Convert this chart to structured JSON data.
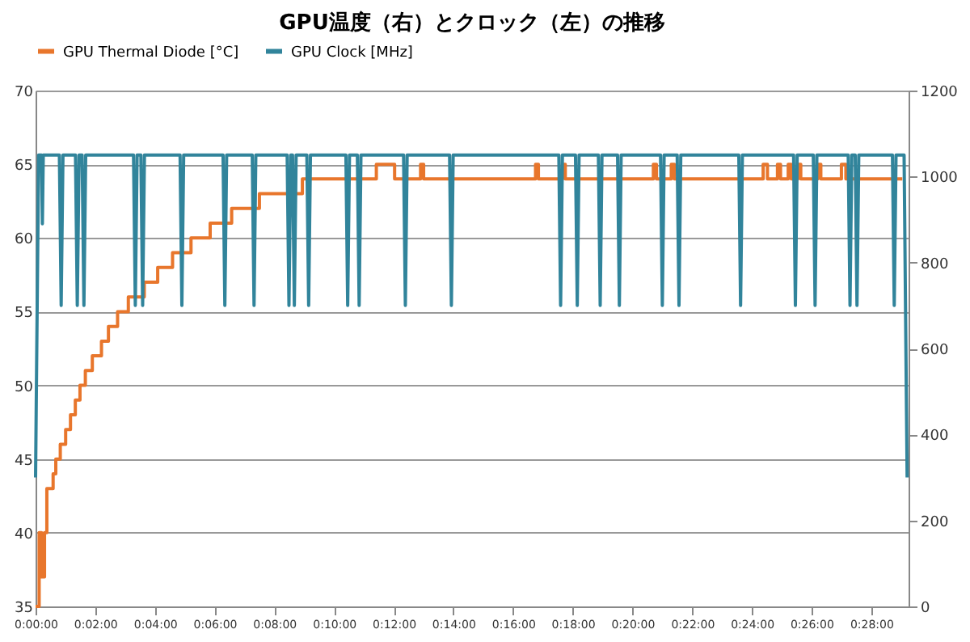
{
  "chart_data": {
    "type": "line",
    "title": "GPU温度（右）とクロック（左）の推移",
    "xlim": [
      0,
      0.4875
    ],
    "xticks": [
      {
        "value": 0,
        "label": "0:00:00"
      },
      {
        "value": 0.0333,
        "label": "0:02:00"
      },
      {
        "value": 0.0667,
        "label": "0:04:00"
      },
      {
        "value": 0.1,
        "label": "0:06:00"
      },
      {
        "value": 0.1333,
        "label": "0:08:00"
      },
      {
        "value": 0.1667,
        "label": "0:10:00"
      },
      {
        "value": 0.2,
        "label": "0:12:00"
      },
      {
        "value": 0.2333,
        "label": "0:14:00"
      },
      {
        "value": 0.2667,
        "label": "0:16:00"
      },
      {
        "value": 0.3,
        "label": "0:18:00"
      },
      {
        "value": 0.3333,
        "label": "0:20:00"
      },
      {
        "value": 0.3667,
        "label": "0:22:00"
      },
      {
        "value": 0.4,
        "label": "0:24:00"
      },
      {
        "value": 0.4333,
        "label": "0:26:00"
      },
      {
        "value": 0.4667,
        "label": "0:28:00"
      }
    ],
    "ylim": [
      35,
      70
    ],
    "yticks": [
      35,
      40,
      45,
      50,
      55,
      60,
      65,
      70
    ],
    "y2lim": [
      0,
      1200
    ],
    "y2ticks": [
      0,
      200,
      400,
      600,
      800,
      1000,
      1200
    ],
    "grid": "y",
    "legend": "top",
    "marker": "none",
    "line_style": "solid",
    "series": [
      {
        "name": "GPU Thermal Diode [°C]",
        "color": "#e8762c",
        "type": "step",
        "x": [
          0,
          0.002,
          0.0033,
          0.005,
          0.0063,
          0.0098,
          0.0113,
          0.0138,
          0.0168,
          0.0195,
          0.0222,
          0.0248,
          0.0278,
          0.0317,
          0.0368,
          0.0407,
          0.0458,
          0.0518,
          0.0607,
          0.0682,
          0.0765,
          0.0868,
          0.0975,
          0.1095,
          0.125,
          0.149,
          0.1903,
          0.2005,
          0.215,
          0.2167,
          0.2792,
          0.2808,
          0.2942,
          0.2958,
          0.345,
          0.3467,
          0.355,
          0.3567,
          0.4063,
          0.4087,
          0.4143,
          0.416,
          0.4203,
          0.422,
          0.4257,
          0.4273,
          0.4368,
          0.4385,
          0.45,
          0.4525,
          0.484
        ],
        "values": [
          35,
          40,
          37,
          40,
          43,
          44,
          45,
          46,
          47,
          48,
          49,
          50,
          51,
          52,
          53,
          54,
          55,
          56,
          57,
          58,
          59,
          60,
          61,
          62,
          63,
          64,
          65,
          64,
          65,
          64,
          65,
          64,
          65,
          64,
          65,
          64,
          65,
          64,
          65,
          64,
          65,
          64,
          65,
          64,
          65,
          64,
          65,
          64,
          65,
          64,
          64
        ]
      },
      {
        "name": "GPU Clock [MHz]",
        "color": "#31849b",
        "type": "line",
        "axis": "y2",
        "x": [
          0,
          0.0017,
          0.0033,
          0.0038,
          0.0043,
          0.0133,
          0.0143,
          0.0153,
          0.0223,
          0.0233,
          0.0243,
          0.026,
          0.027,
          0.028,
          0.0547,
          0.0557,
          0.0567,
          0.0588,
          0.0598,
          0.0608,
          0.0807,
          0.0817,
          0.0827,
          0.1047,
          0.1057,
          0.1067,
          0.121,
          0.122,
          0.123,
          0.1405,
          0.1415,
          0.1425,
          0.1435,
          0.1445,
          0.1455,
          0.1515,
          0.1525,
          0.1535,
          0.1733,
          0.1743,
          0.1753,
          0.1797,
          0.1807,
          0.1817,
          0.2055,
          0.2065,
          0.2075,
          0.2312,
          0.2322,
          0.2332,
          0.2922,
          0.2932,
          0.2942,
          0.3015,
          0.3025,
          0.3035,
          0.3143,
          0.3153,
          0.3163,
          0.325,
          0.326,
          0.327,
          0.349,
          0.35,
          0.351,
          0.3583,
          0.3593,
          0.3603,
          0.3927,
          0.3937,
          0.3947,
          0.4233,
          0.4243,
          0.4253,
          0.4343,
          0.4353,
          0.4363,
          0.4538,
          0.4548,
          0.4558,
          0.4577,
          0.4587,
          0.4597,
          0.4785,
          0.4795,
          0.4805,
          0.485,
          0.4867
        ],
        "values": [
          300,
          1050,
          1050,
          890,
          1050,
          1050,
          700,
          1050,
          1050,
          700,
          1050,
          1050,
          700,
          1050,
          1050,
          700,
          1050,
          1050,
          700,
          1050,
          1050,
          700,
          1050,
          1050,
          700,
          1050,
          1050,
          700,
          1050,
          1050,
          700,
          1050,
          1050,
          700,
          1050,
          1050,
          700,
          1050,
          1050,
          700,
          1050,
          1050,
          700,
          1050,
          1050,
          700,
          1050,
          1050,
          700,
          1050,
          1050,
          700,
          1050,
          1050,
          700,
          1050,
          1050,
          700,
          1050,
          1050,
          700,
          1050,
          1050,
          700,
          1050,
          1050,
          700,
          1050,
          1050,
          700,
          1050,
          1050,
          700,
          1050,
          1050,
          700,
          1050,
          1050,
          700,
          1050,
          1050,
          700,
          1050,
          1050,
          700,
          1050,
          1050,
          300
        ]
      }
    ]
  }
}
